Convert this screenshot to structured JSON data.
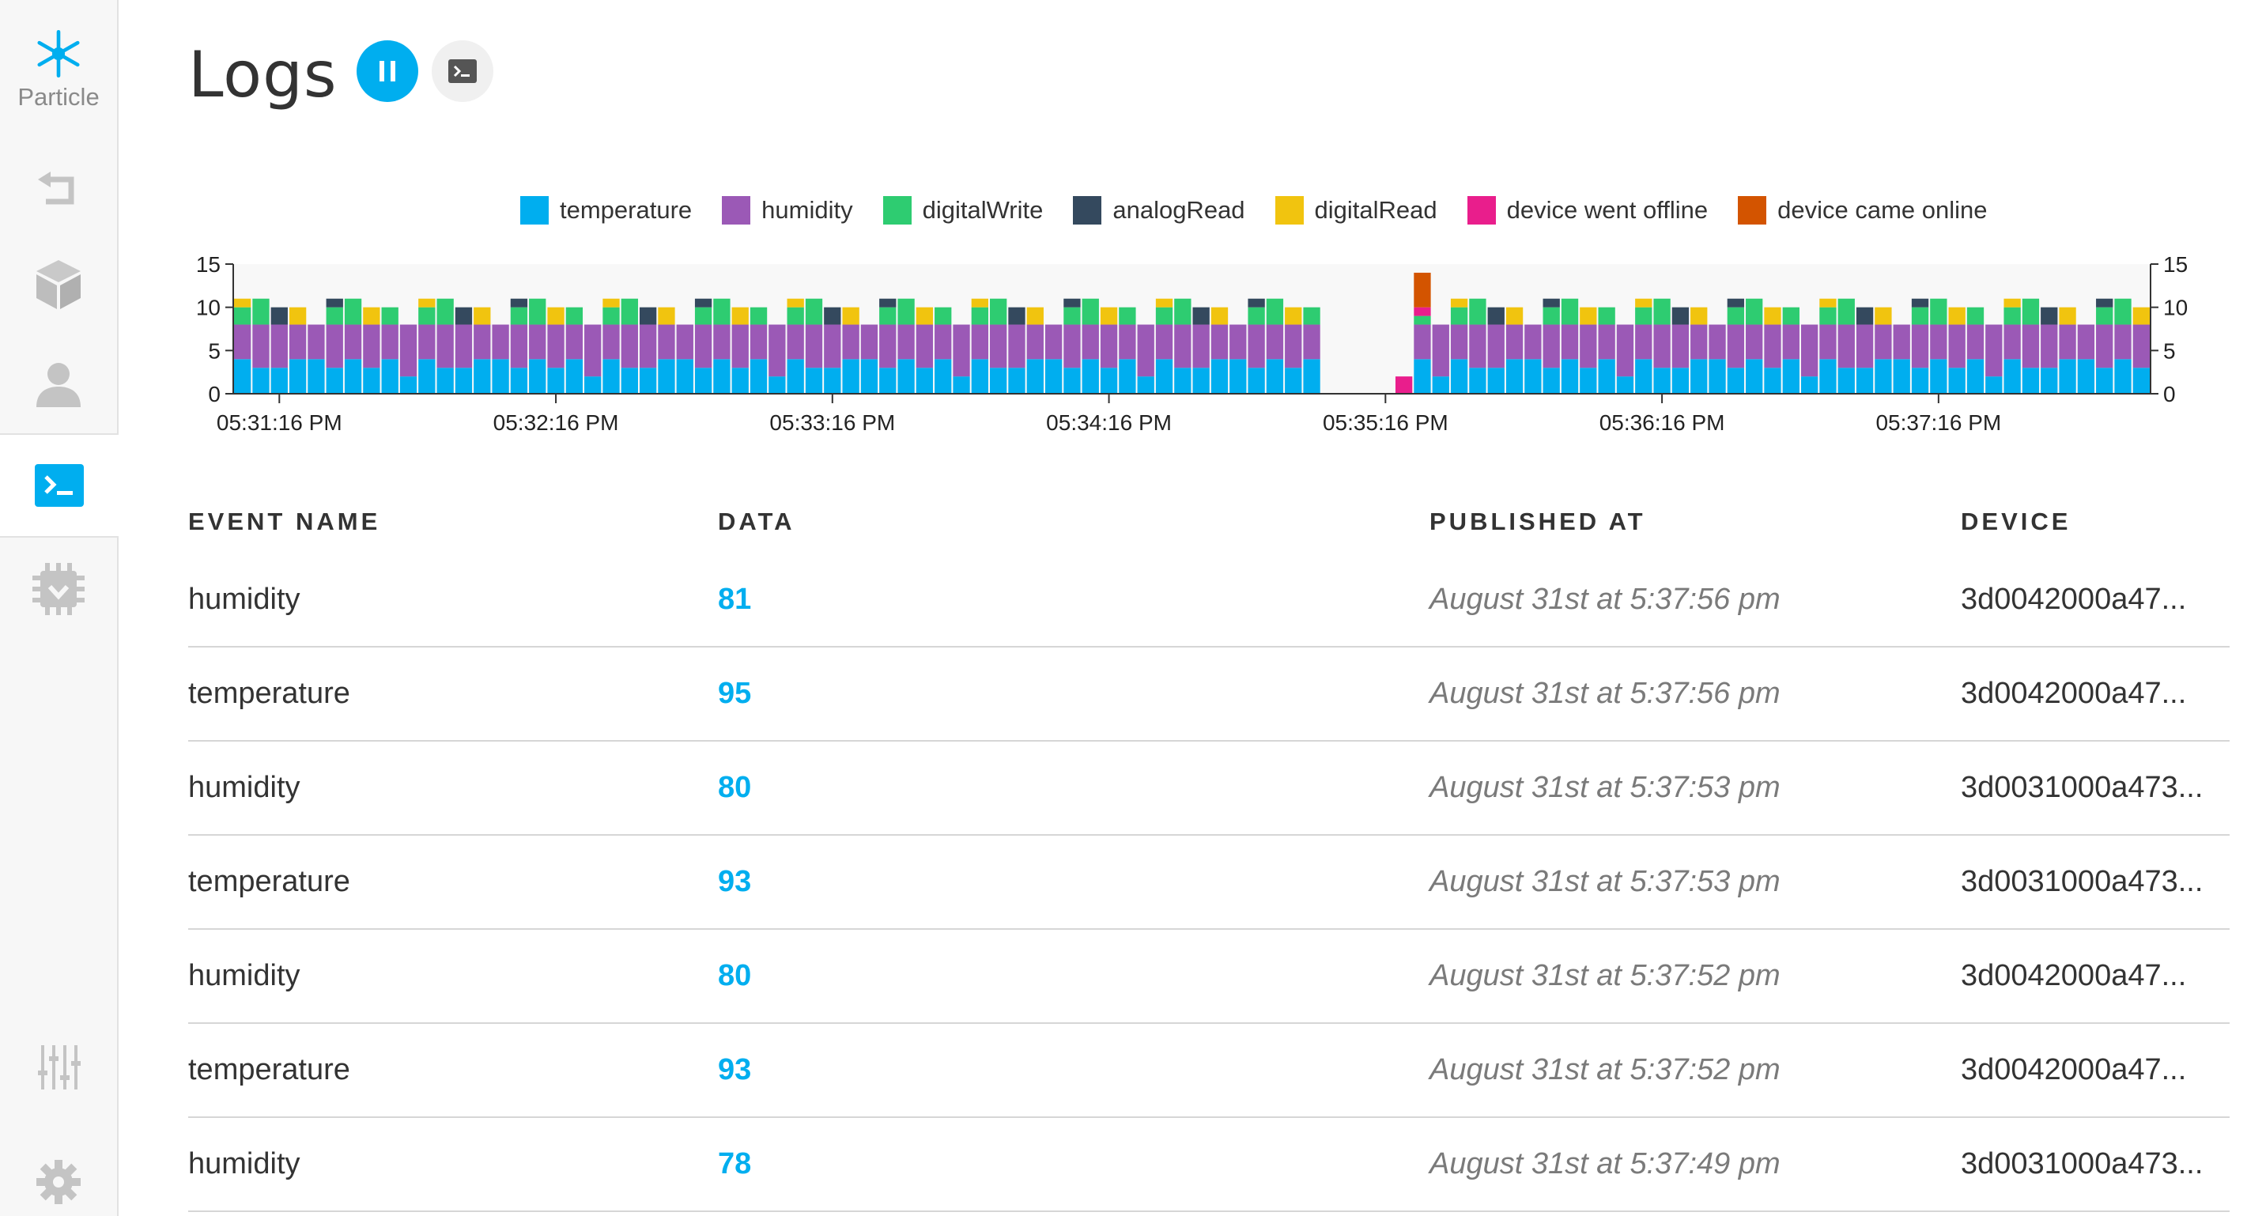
{
  "app": {
    "brand": "Particle"
  },
  "header": {
    "title": "Logs"
  },
  "colors": {
    "accent": "#00aeef",
    "temperature": "#00aeef",
    "humidity": "#9b59b6",
    "digitalWrite": "#2ecc71",
    "analogRead": "#34495e",
    "digitalRead": "#f1c40f",
    "device_went_offline": "#e91e8c",
    "device_came_online": "#d35400"
  },
  "sidebar": {
    "items": [
      {
        "name": "back-icon",
        "active": false
      },
      {
        "name": "cube-icon",
        "active": false
      },
      {
        "name": "user-icon",
        "active": false
      },
      {
        "name": "terminal-icon",
        "active": true
      },
      {
        "name": "chip-icon",
        "active": false
      },
      {
        "name": "sliders-icon",
        "active": false
      },
      {
        "name": "gear-icon",
        "active": false
      }
    ]
  },
  "legend": [
    {
      "label": "temperature",
      "color": "#00aeef"
    },
    {
      "label": "humidity",
      "color": "#9b59b6"
    },
    {
      "label": "digitalWrite",
      "color": "#2ecc71"
    },
    {
      "label": "analogRead",
      "color": "#34495e"
    },
    {
      "label": "digitalRead",
      "color": "#f1c40f"
    },
    {
      "label": "device went offline",
      "color": "#e91e8c"
    },
    {
      "label": "device came online",
      "color": "#d35400"
    }
  ],
  "chart_data": {
    "type": "bar",
    "stacked": true,
    "yticks": [
      0,
      5,
      10,
      15
    ],
    "ylim": [
      0,
      15
    ],
    "xtick_labels": [
      "05:31:16 PM",
      "05:32:16 PM",
      "05:33:16 PM",
      "05:34:16 PM",
      "05:35:16 PM",
      "05:36:16 PM",
      "05:37:16 PM"
    ],
    "series_order": [
      "temperature",
      "humidity",
      "digitalWrite",
      "analogRead",
      "digitalRead",
      "device went offline",
      "device came online"
    ],
    "pattern_cycle": [
      [
        4,
        4,
        2,
        0,
        1,
        0,
        0
      ],
      [
        3,
        5,
        3,
        0,
        0,
        0,
        0
      ],
      [
        3,
        5,
        0,
        2,
        0,
        0,
        0
      ],
      [
        4,
        4,
        0,
        0,
        2,
        0,
        0
      ],
      [
        4,
        4,
        0,
        0,
        0,
        0,
        0
      ],
      [
        3,
        5,
        2,
        1,
        0,
        0,
        0
      ],
      [
        4,
        4,
        3,
        0,
        0,
        0,
        0
      ],
      [
        3,
        5,
        0,
        0,
        2,
        0,
        0
      ],
      [
        4,
        4,
        2,
        0,
        0,
        0,
        0
      ],
      [
        2,
        6,
        0,
        0,
        0,
        0,
        0
      ]
    ],
    "bars_per_segment": 15,
    "gap_bars": [
      59,
      60,
      61,
      62
    ],
    "offline_bar": [
      0,
      0,
      0,
      0,
      0,
      2,
      0
    ],
    "online_bar": [
      4,
      4,
      1,
      0,
      0,
      1,
      4
    ]
  },
  "table": {
    "headers": {
      "event_name": "EVENT NAME",
      "data": "DATA",
      "published_at": "PUBLISHED AT",
      "device": "DEVICE"
    },
    "rows": [
      {
        "event": "humidity",
        "data": "81",
        "published": "August 31st at 5:37:56 pm",
        "device": "3d0042000a47..."
      },
      {
        "event": "temperature",
        "data": "95",
        "published": "August 31st at 5:37:56 pm",
        "device": "3d0042000a47..."
      },
      {
        "event": "humidity",
        "data": "80",
        "published": "August 31st at 5:37:53 pm",
        "device": "3d0031000a473..."
      },
      {
        "event": "temperature",
        "data": "93",
        "published": "August 31st at 5:37:53 pm",
        "device": "3d0031000a473..."
      },
      {
        "event": "humidity",
        "data": "80",
        "published": "August 31st at 5:37:52 pm",
        "device": "3d0042000a47..."
      },
      {
        "event": "temperature",
        "data": "93",
        "published": "August 31st at 5:37:52 pm",
        "device": "3d0042000a47..."
      },
      {
        "event": "humidity",
        "data": "78",
        "published": "August 31st at 5:37:49 pm",
        "device": "3d0031000a473..."
      }
    ]
  }
}
